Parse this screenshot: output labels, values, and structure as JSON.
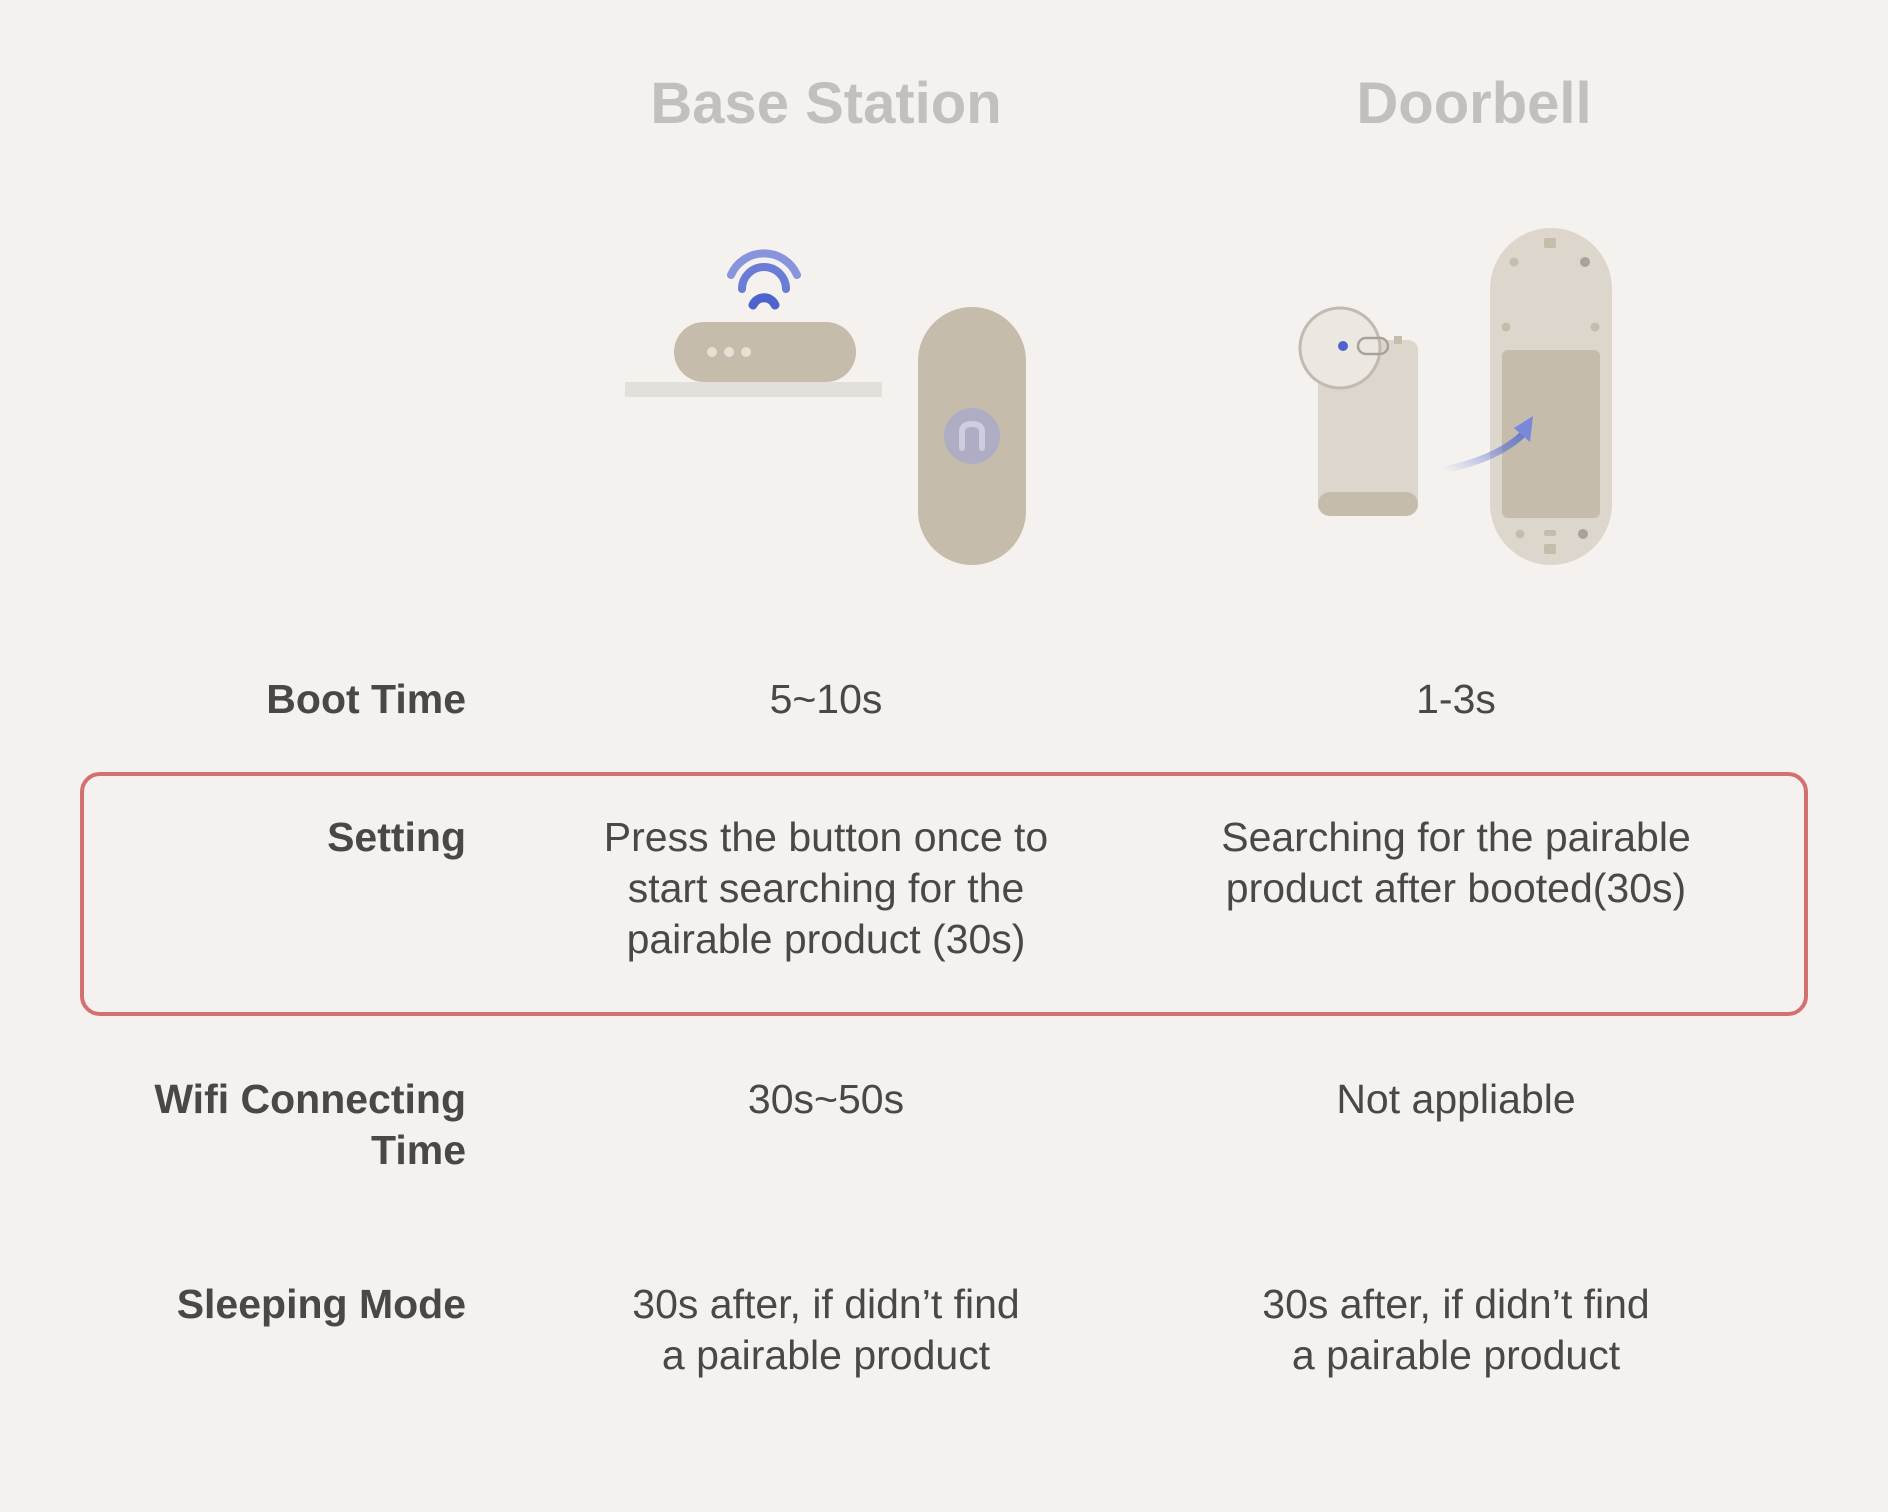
{
  "columns": {
    "base_station": "Base Station",
    "doorbell": "Doorbell"
  },
  "rows": [
    {
      "label": "Boot Time",
      "base_station": "5~10s",
      "doorbell": "1-3s"
    },
    {
      "label": "Setting",
      "base_station": "Press the button once to\nstart searching for the\npairable product (30s)",
      "doorbell": "Searching for the pairable\nproduct after booted(30s)"
    },
    {
      "label": "Wifi Connecting\nTime",
      "base_station": "30s~50s",
      "doorbell": "Not appliable"
    },
    {
      "label": "Sleeping Mode",
      "base_station": "30s after, if didn’t find\na pairable product",
      "doorbell": "30s after, if didn’t find\na pairable product"
    }
  ],
  "colors": {
    "background": "#f4f1ee",
    "device": "#c6bcab",
    "device_light": "#ddd6cc",
    "accent_blue": "#5a6fd1",
    "highlight_border": "#d4706f",
    "title_gray": "#c2bfbc"
  }
}
